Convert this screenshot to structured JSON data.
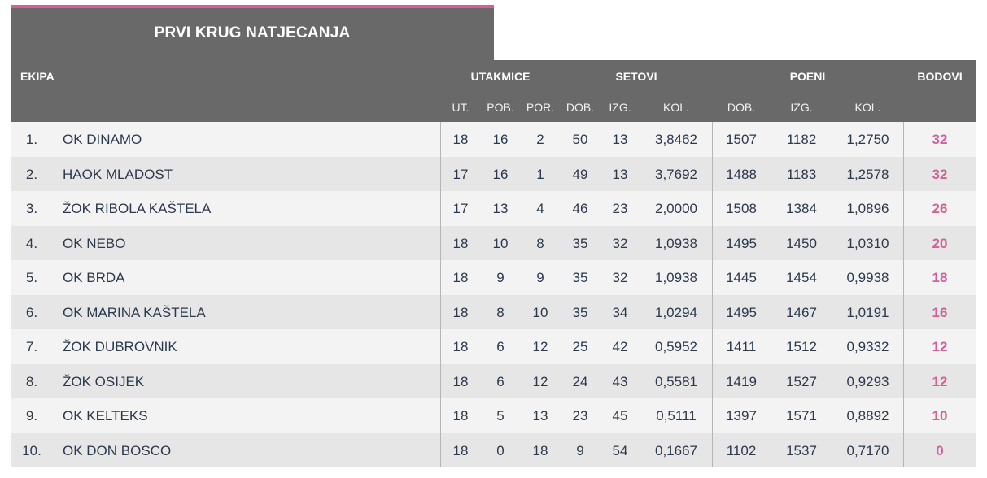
{
  "title": "PRVI KRUG NATJECANJA",
  "headers": {
    "team": "EKIPA",
    "matches": "UTAKMICE",
    "sets": "SETOVI",
    "points": "POENI",
    "standing_points": "BODOVI",
    "sub": {
      "played": "UT.",
      "won": "POB.",
      "lost": "POR.",
      "sets_won": "DOB.",
      "sets_lost": "IZG.",
      "sets_ratio": "KOL.",
      "points_won": "DOB.",
      "points_lost": "IZG.",
      "points_ratio": "KOL."
    }
  },
  "rows": [
    {
      "rank": "1.",
      "team": "OK DINAMO",
      "played": "18",
      "won": "16",
      "lost": "2",
      "sw": "50",
      "sl": "13",
      "sr": "3,8462",
      "pw": "1507",
      "pl": "1182",
      "pr": "1,2750",
      "pts": "32"
    },
    {
      "rank": "2.",
      "team": "HAOK MLADOST",
      "played": "17",
      "won": "16",
      "lost": "1",
      "sw": "49",
      "sl": "13",
      "sr": "3,7692",
      "pw": "1488",
      "pl": "1183",
      "pr": "1,2578",
      "pts": "32"
    },
    {
      "rank": "3.",
      "team": "ŽOK RIBOLA KAŠTELA",
      "played": "17",
      "won": "13",
      "lost": "4",
      "sw": "46",
      "sl": "23",
      "sr": "2,0000",
      "pw": "1508",
      "pl": "1384",
      "pr": "1,0896",
      "pts": "26"
    },
    {
      "rank": "4.",
      "team": "OK NEBO",
      "played": "18",
      "won": "10",
      "lost": "8",
      "sw": "35",
      "sl": "32",
      "sr": "1,0938",
      "pw": "1495",
      "pl": "1450",
      "pr": "1,0310",
      "pts": "20"
    },
    {
      "rank": "5.",
      "team": "OK BRDA",
      "played": "18",
      "won": "9",
      "lost": "9",
      "sw": "35",
      "sl": "32",
      "sr": "1,0938",
      "pw": "1445",
      "pl": "1454",
      "pr": "0,9938",
      "pts": "18"
    },
    {
      "rank": "6.",
      "team": "OK MARINA KAŠTELA",
      "played": "18",
      "won": "8",
      "lost": "10",
      "sw": "35",
      "sl": "34",
      "sr": "1,0294",
      "pw": "1495",
      "pl": "1467",
      "pr": "1,0191",
      "pts": "16"
    },
    {
      "rank": "7.",
      "team": "ŽOK DUBROVNIK",
      "played": "18",
      "won": "6",
      "lost": "12",
      "sw": "25",
      "sl": "42",
      "sr": "0,5952",
      "pw": "1411",
      "pl": "1512",
      "pr": "0,9332",
      "pts": "12"
    },
    {
      "rank": "8.",
      "team": "ŽOK OSIJEK",
      "played": "18",
      "won": "6",
      "lost": "12",
      "sw": "24",
      "sl": "43",
      "sr": "0,5581",
      "pw": "1419",
      "pl": "1527",
      "pr": "0,9293",
      "pts": "12"
    },
    {
      "rank": "9.",
      "team": "OK KELTEKS",
      "played": "18",
      "won": "5",
      "lost": "13",
      "sw": "23",
      "sl": "45",
      "sr": "0,5111",
      "pw": "1397",
      "pl": "1571",
      "pr": "0,8892",
      "pts": "10"
    },
    {
      "rank": "10.",
      "team": "OK DON BOSCO",
      "played": "18",
      "won": "0",
      "lost": "18",
      "sw": "9",
      "sl": "54",
      "sr": "0,1667",
      "pw": "1102",
      "pl": "1537",
      "pr": "0,7170",
      "pts": "0"
    }
  ],
  "colors": {
    "header_bg": "#696969",
    "accent": "#d2619a",
    "row_light": "#f3f3f3",
    "row_dark": "#e6e6e6"
  }
}
